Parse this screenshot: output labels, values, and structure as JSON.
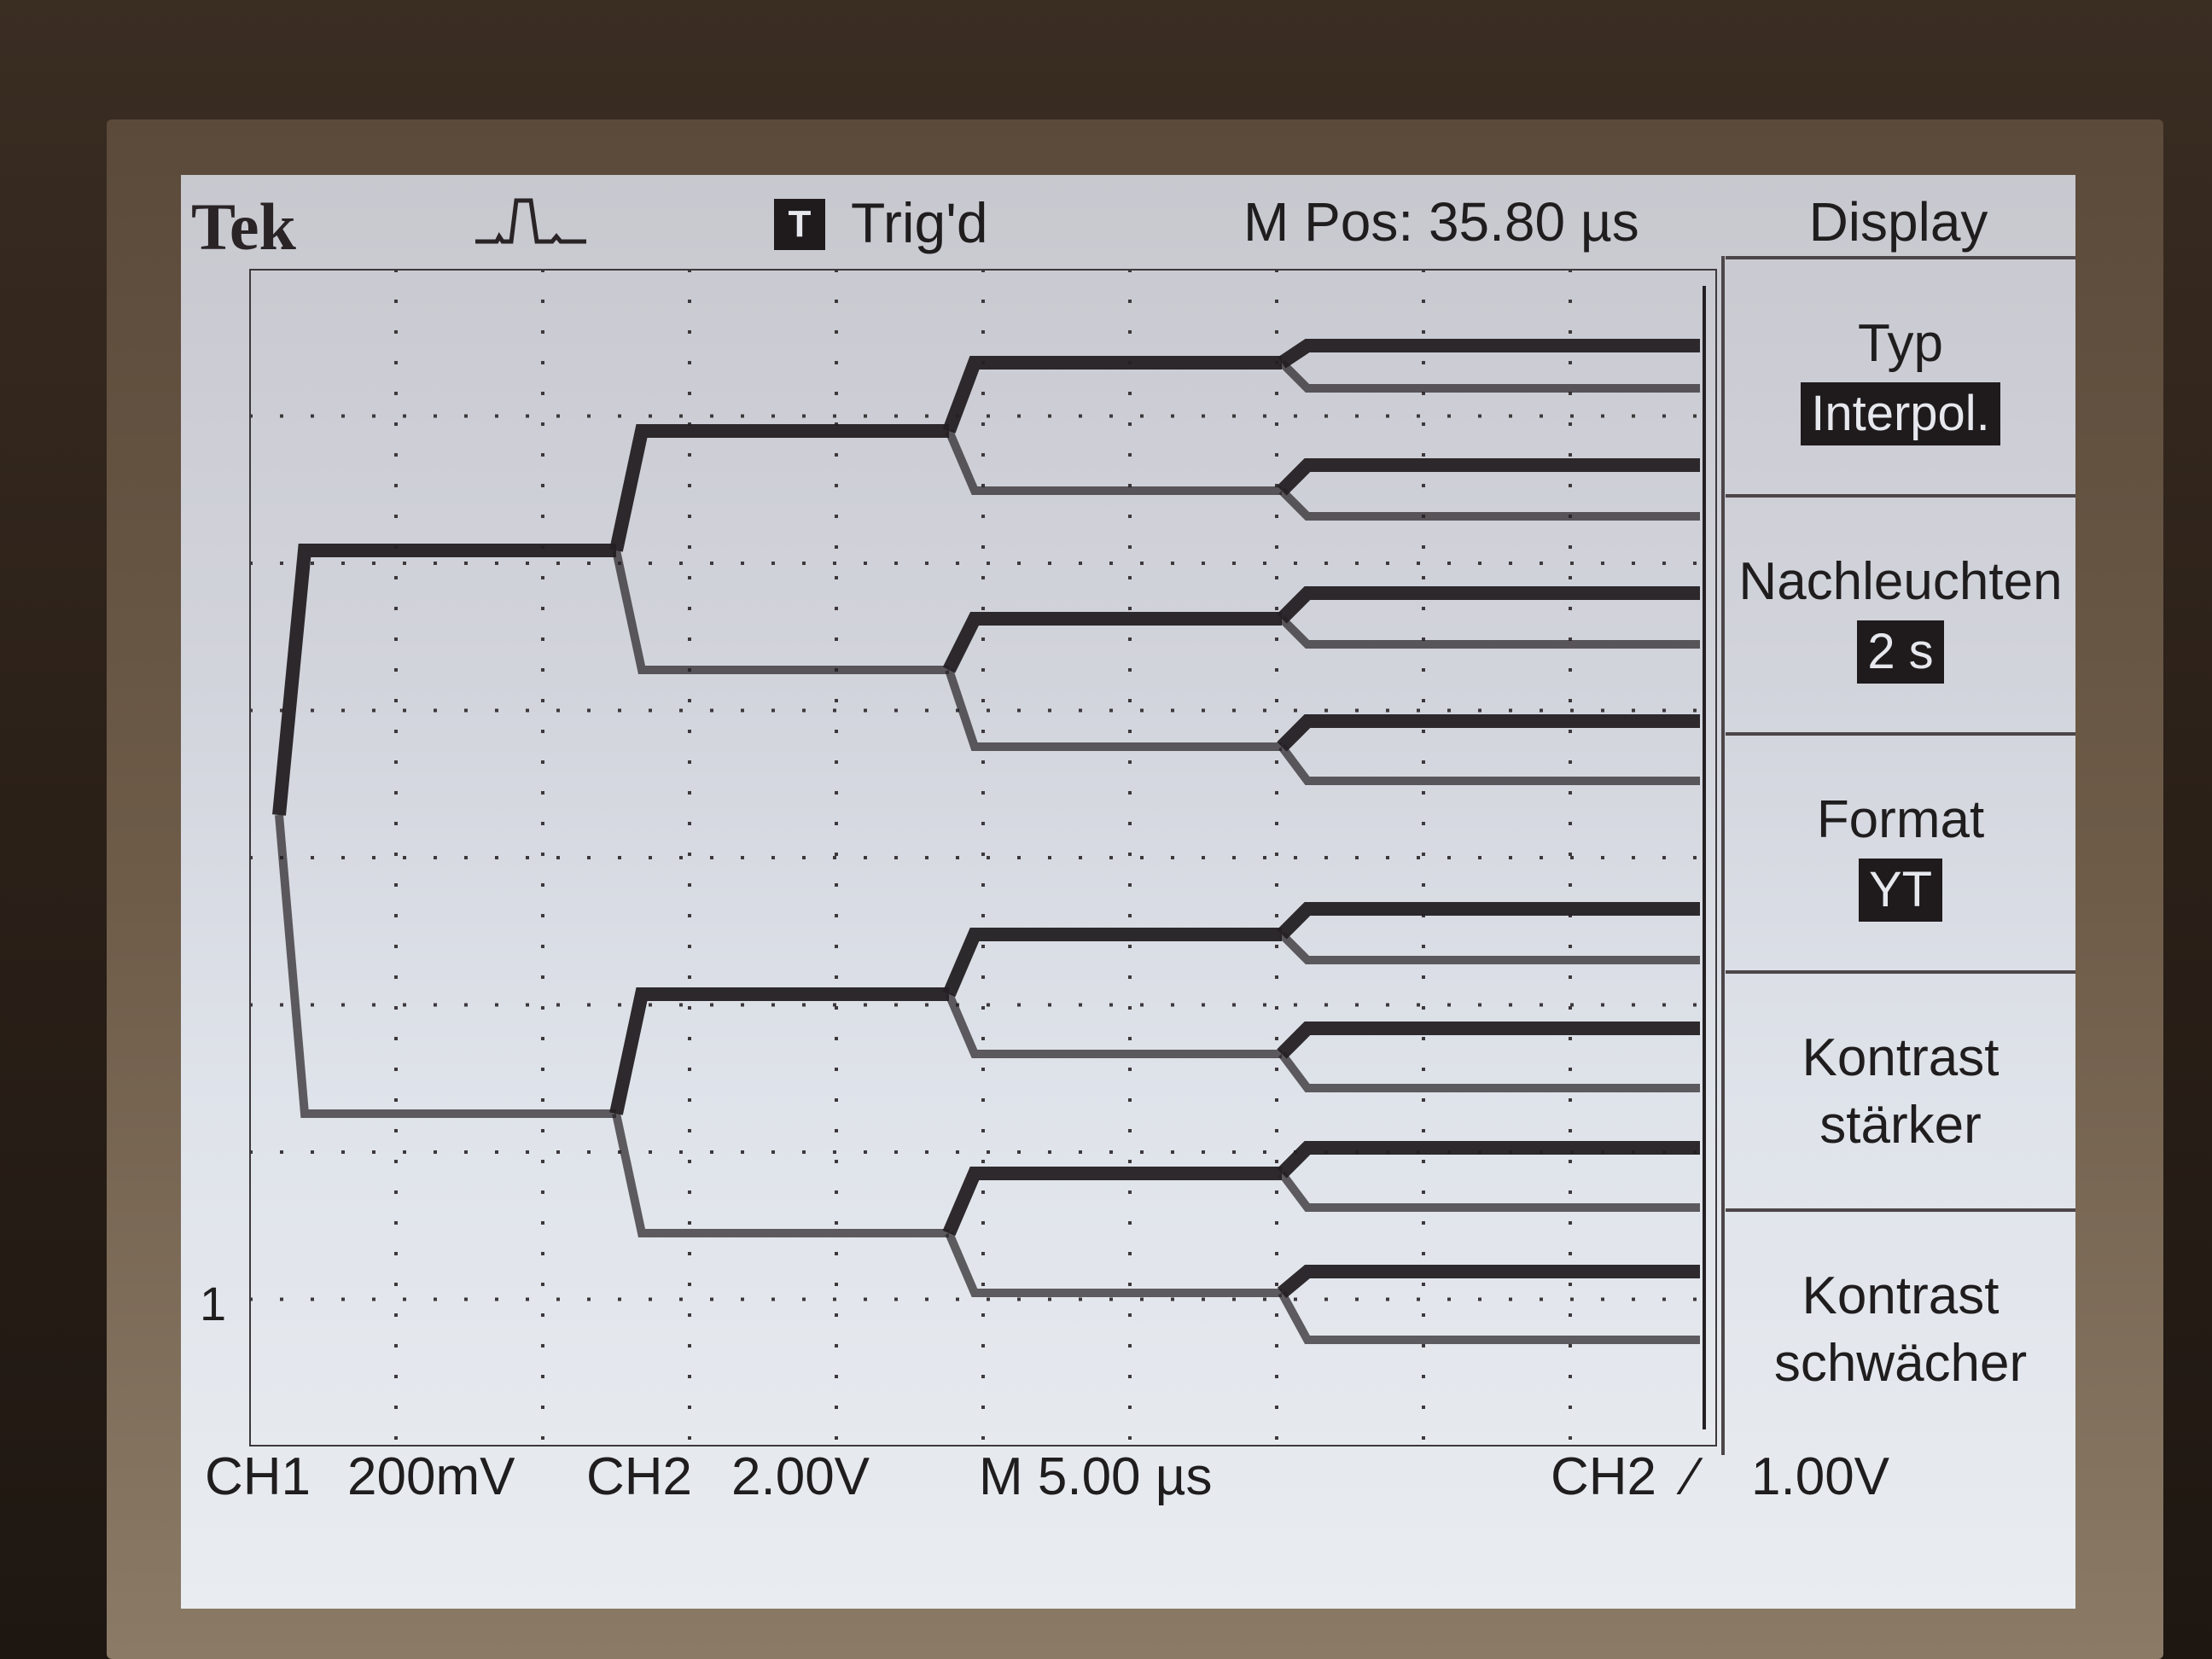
{
  "header": {
    "brand": "Tek",
    "trigger_badge": "T",
    "trigger_status": "Trig'd",
    "position": "M Pos: 35.80 µs",
    "menu_title": "Display"
  },
  "menu": {
    "items": [
      {
        "label": "Typ",
        "value": "Interpol."
      },
      {
        "label": "Nachleuchten",
        "value": "2 s"
      },
      {
        "label": "Format",
        "value": "YT"
      },
      {
        "label": "Kontrast",
        "label2": "stärker"
      },
      {
        "label": "Kontrast",
        "label2": "schwächer"
      }
    ]
  },
  "footer": {
    "ch1": "CH1",
    "ch1_scale": "200mV",
    "ch2": "CH2",
    "ch2_scale": "2.00V",
    "timebase": "M 5.00 µs",
    "trigger_source": "CH2",
    "trigger_slope": "⁄",
    "trigger_level": "1.00V"
  },
  "ground_marker": "1",
  "colors": {
    "screen": "#d6d9e1",
    "trace": "#231f22",
    "graticule": "#3d383b",
    "highlight_bg": "#1f1b1c"
  }
}
